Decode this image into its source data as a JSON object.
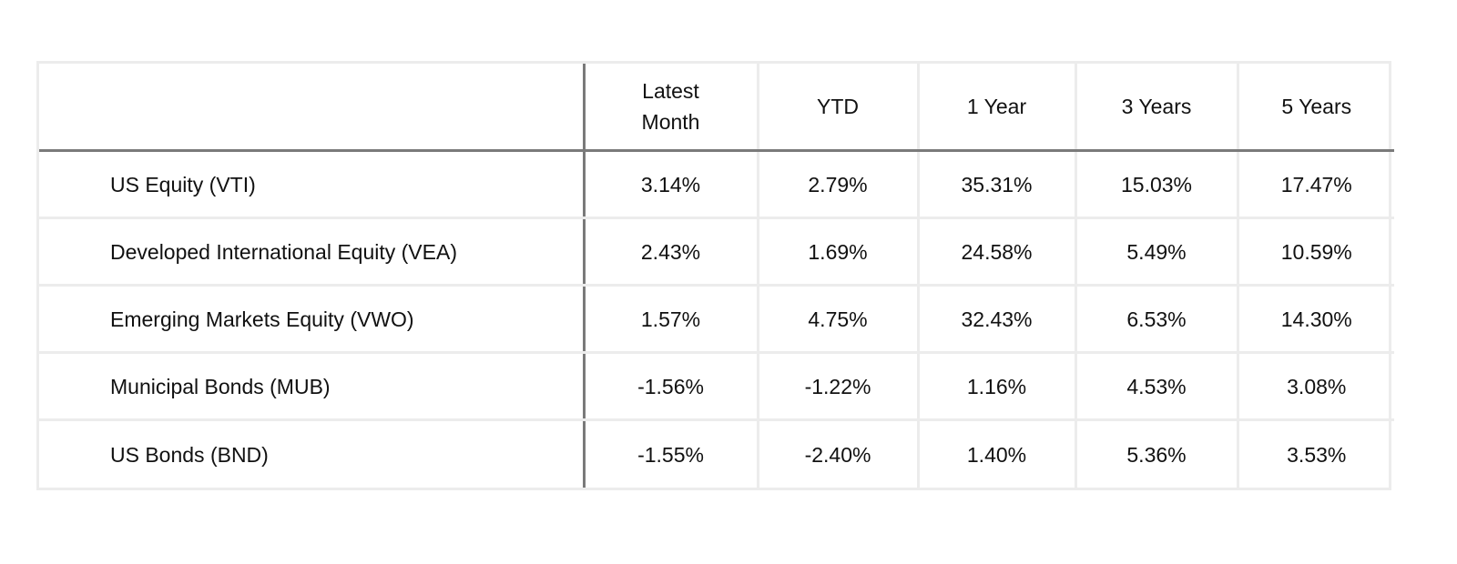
{
  "chart_data": {
    "type": "table",
    "columns": [
      "",
      "Latest\nMonth",
      "YTD",
      "1 Year",
      "3 Years",
      "5 Years"
    ],
    "rows": [
      [
        "US Equity (VTI)",
        "3.14%",
        "2.79%",
        "35.31%",
        "15.03%",
        "17.47%"
      ],
      [
        "Developed International Equity (VEA)",
        "2.43%",
        "1.69%",
        "24.58%",
        "5.49%",
        "10.59%"
      ],
      [
        "Emerging Markets Equity (VWO)",
        "1.57%",
        "4.75%",
        "32.43%",
        "6.53%",
        "14.30%"
      ],
      [
        "Municipal Bonds (MUB)",
        "-1.56%",
        "-1.22%",
        "1.16%",
        "4.53%",
        "3.08%"
      ],
      [
        "US Bonds (BND)",
        "-1.55%",
        "-2.40%",
        "1.40%",
        "5.36%",
        "3.53%"
      ]
    ]
  }
}
